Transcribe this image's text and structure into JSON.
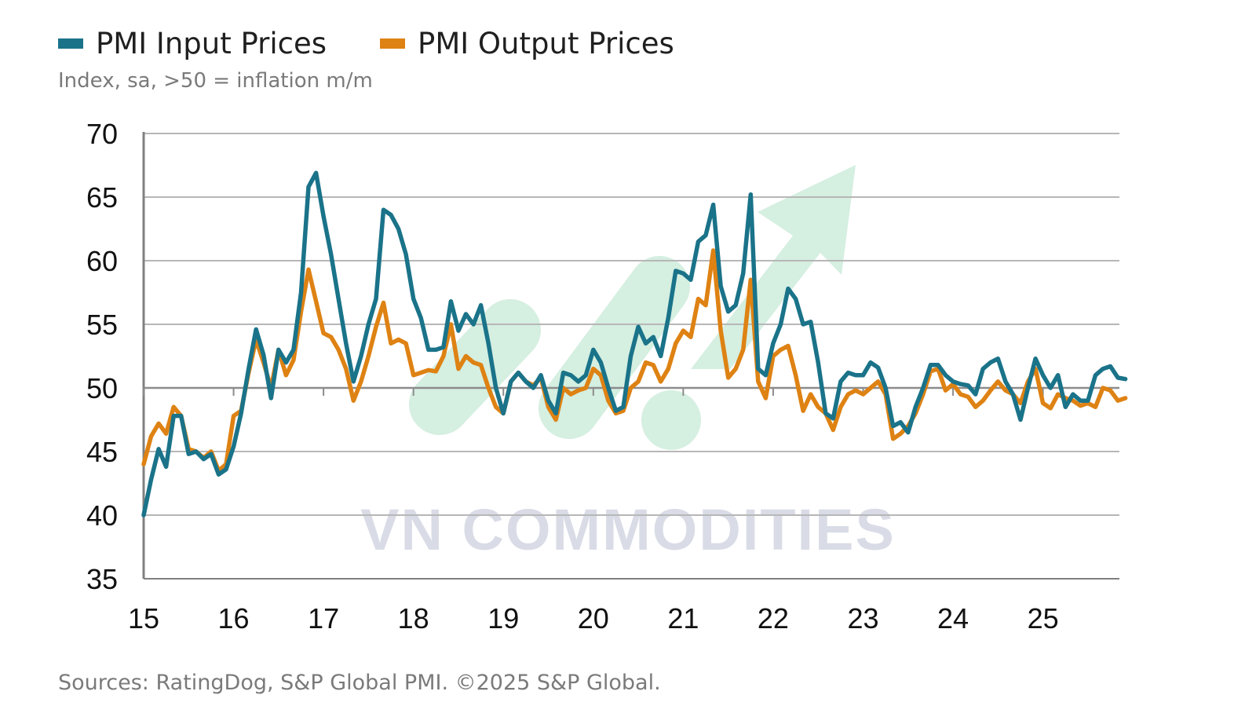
{
  "legend": {
    "input_label": "PMI Input Prices",
    "output_label": "PMI Output Prices"
  },
  "subtitle": "Index, sa, >50 = inflation m/m",
  "source": "Sources: RatingDog, S&P Global PMI. ©2025 S&P Global.",
  "watermark": "VN COMMODITIES",
  "colors": {
    "input": "#1a7389",
    "output": "#de8213",
    "grid": "#b7b7b7",
    "axis": "#808080",
    "baseline": "#8c8c8c",
    "watermark_text": "#d9dce6",
    "watermark_mark": "#d5efe1"
  },
  "chart_data": {
    "type": "line",
    "title": "",
    "xlabel": "",
    "ylabel": "",
    "ylim": [
      35,
      70
    ],
    "yticks": [
      35,
      40,
      45,
      50,
      55,
      60,
      65,
      70
    ],
    "xlim": [
      2015,
      2025.85
    ],
    "xticks": [
      {
        "x": 2015,
        "label": "15"
      },
      {
        "x": 2016,
        "label": "16"
      },
      {
        "x": 2017,
        "label": "17"
      },
      {
        "x": 2018,
        "label": "18"
      },
      {
        "x": 2019,
        "label": "19"
      },
      {
        "x": 2020,
        "label": "20"
      },
      {
        "x": 2021,
        "label": "21"
      },
      {
        "x": 2022,
        "label": "22"
      },
      {
        "x": 2023,
        "label": "23"
      },
      {
        "x": 2024,
        "label": "24"
      },
      {
        "x": 2025,
        "label": "25"
      }
    ],
    "grid": true,
    "reference_line": 50,
    "start": "2015-01",
    "frequency": "monthly",
    "series": [
      {
        "name": "PMI Input Prices",
        "values": [
          40.0,
          42.8,
          45.2,
          43.8,
          47.8,
          47.8,
          44.8,
          45.0,
          44.4,
          44.8,
          43.2,
          43.6,
          45.4,
          48.0,
          51.5,
          54.6,
          52.6,
          49.2,
          53.0,
          52.0,
          53.0,
          57.5,
          65.8,
          66.9,
          63.5,
          60.5,
          57.0,
          53.5,
          50.5,
          52.5,
          55.0,
          57.0,
          64.0,
          63.6,
          62.5,
          60.5,
          57.0,
          55.5,
          53.0,
          53.0,
          53.2,
          56.8,
          54.5,
          55.8,
          55.0,
          56.5,
          53.5,
          50.0,
          48.0,
          50.5,
          51.2,
          50.5,
          50.0,
          51.0,
          49.0,
          48.0,
          51.2,
          51.0,
          50.5,
          51.0,
          53.0,
          52.0,
          50.0,
          48.2,
          48.5,
          52.5,
          54.8,
          53.5,
          54.0,
          52.5,
          55.5,
          59.2,
          59.0,
          58.5,
          61.5,
          62.0,
          64.4,
          58.0,
          56.0,
          56.5,
          59.0,
          65.2,
          51.5,
          51.0,
          53.5,
          55.0,
          57.8,
          57.0,
          55.0,
          55.2,
          52.0,
          48.0,
          47.6,
          50.5,
          51.2,
          51.0,
          51.0,
          52.0,
          51.6,
          50.0,
          47.0,
          47.3,
          46.5,
          48.5,
          50.0,
          51.8,
          51.8,
          51.0,
          50.5,
          50.3,
          50.2,
          49.5,
          51.5,
          52.0,
          52.3,
          50.5,
          49.5,
          47.5,
          50.0,
          52.3,
          51.0,
          50.0,
          51.0,
          48.5,
          49.5,
          49.0,
          49.0,
          51.0,
          51.5,
          51.7,
          50.8,
          50.7
        ]
      },
      {
        "name": "PMI Output Prices",
        "values": [
          44.0,
          46.2,
          47.2,
          46.4,
          48.5,
          47.8,
          45.2,
          45.0,
          44.5,
          45.0,
          43.5,
          44.0,
          47.8,
          48.2,
          51.2,
          53.8,
          52.0,
          50.0,
          53.0,
          51.0,
          52.2,
          56.0,
          59.3,
          56.8,
          54.3,
          54.0,
          53.0,
          51.5,
          49.0,
          50.5,
          52.5,
          54.8,
          56.7,
          53.5,
          53.8,
          53.5,
          51.0,
          51.2,
          51.4,
          51.3,
          52.5,
          55.0,
          51.5,
          52.5,
          52.0,
          51.8,
          50.0,
          48.5,
          48.0,
          50.5,
          51.2,
          50.5,
          50.2,
          50.8,
          48.5,
          47.5,
          50.0,
          49.5,
          49.8,
          50.0,
          51.5,
          51.0,
          49.0,
          48.0,
          48.2,
          50.0,
          50.5,
          52.0,
          51.8,
          50.5,
          51.5,
          53.5,
          54.5,
          54.0,
          57.0,
          56.5,
          60.8,
          54.5,
          50.8,
          51.5,
          53.0,
          58.5,
          50.5,
          49.2,
          52.5,
          53.0,
          53.3,
          51.0,
          48.2,
          49.5,
          48.5,
          48.0,
          46.7,
          48.5,
          49.5,
          49.8,
          49.5,
          50.0,
          50.5,
          49.5,
          46.0,
          46.4,
          47.0,
          48.0,
          49.5,
          51.3,
          51.5,
          49.8,
          50.3,
          49.5,
          49.3,
          48.5,
          49.0,
          49.8,
          50.5,
          49.8,
          49.5,
          48.8,
          50.5,
          51.5,
          48.8,
          48.4,
          49.5,
          49.2,
          49.0,
          48.6,
          48.8,
          48.5,
          50.0,
          49.8,
          49.0,
          49.2
        ]
      }
    ]
  }
}
